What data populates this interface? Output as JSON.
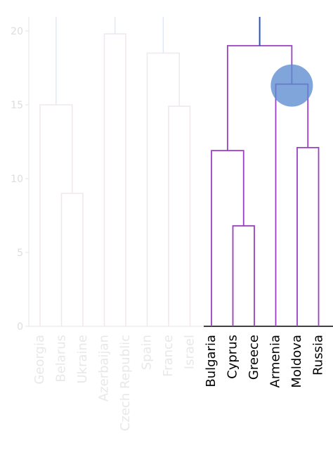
{
  "chart_data": {
    "type": "dendrogram",
    "ylim": [
      0,
      21
    ],
    "y_ticks": [
      0,
      5,
      10,
      15,
      20
    ],
    "leaves": [
      "Georgia",
      "Belarus",
      "Ukraine",
      "Azerbaijan",
      "Czech Republic",
      "Spain",
      "France",
      "Israel",
      "Bulgaria",
      "Cyprus",
      "Greece",
      "Armenia",
      "Moldova",
      "Russia"
    ],
    "faded_leaves": [
      "Georgia",
      "Belarus",
      "Ukraine",
      "Azerbaijan",
      "Czech Republic",
      "Spain",
      "France",
      "Israel"
    ],
    "merges": [
      {
        "id": "m1",
        "left": "Belarus",
        "right": "Ukraine",
        "height": 9.0,
        "faded": true
      },
      {
        "id": "m2",
        "left": "Georgia",
        "right": "m1",
        "height": 15.0,
        "faded": true
      },
      {
        "id": "m3",
        "left": "Azerbaijan",
        "right": "Czech Republic",
        "height": 19.8,
        "faded": true
      },
      {
        "id": "m4",
        "left": "France",
        "right": "Israel",
        "height": 14.9,
        "faded": true
      },
      {
        "id": "m5",
        "left": "Spain",
        "right": "m4",
        "height": 18.5,
        "faded": true
      },
      {
        "id": "m6",
        "left": "Cyprus",
        "right": "Greece",
        "height": 6.8,
        "faded": false
      },
      {
        "id": "m7",
        "left": "Bulgaria",
        "right": "m6",
        "height": 11.9,
        "faded": false
      },
      {
        "id": "m8",
        "left": "Moldova",
        "right": "Russia",
        "height": 12.1,
        "faded": false
      },
      {
        "id": "m9",
        "left": "Armenia",
        "right": "m8",
        "height": 16.4,
        "faded": false
      },
      {
        "id": "m10",
        "left": "m7",
        "right": "m9",
        "height": 19.0,
        "faded": false
      }
    ],
    "highlight": {
      "merge": "m9"
    },
    "colors": {
      "active_link": "#9b3fc4",
      "parent_link": "#2a52be",
      "faded_link": "#f0e8ef",
      "faded_parent": "#dfe6f7",
      "marker": "#5b8ccf",
      "axis": "#e6e6e6",
      "tick_label": "#dddddd",
      "faded_label": "#e8e8e8",
      "active_label": "#000000"
    }
  }
}
